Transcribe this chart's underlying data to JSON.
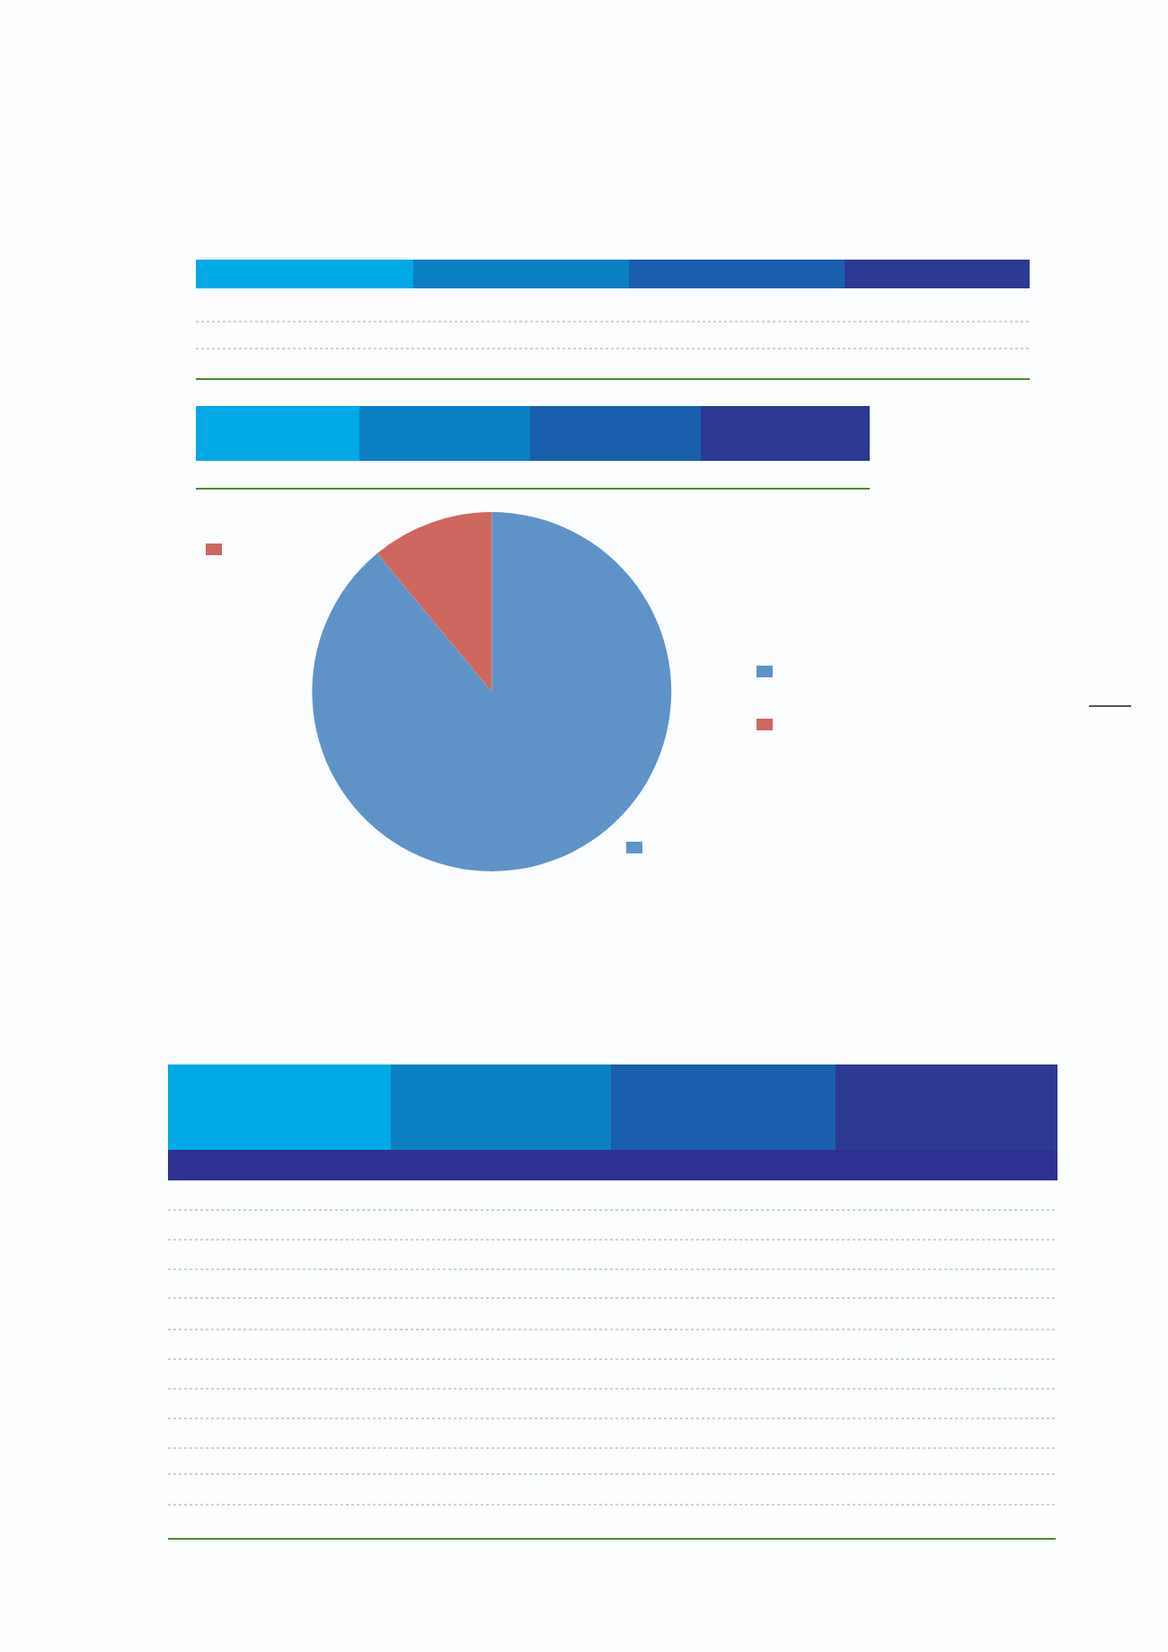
{
  "chart_data": {
    "type": "pie",
    "categories": [
      null,
      null
    ],
    "values": [
      89,
      11
    ],
    "colors": [
      "#5f93c7",
      "#cd675f"
    ]
  }
}
